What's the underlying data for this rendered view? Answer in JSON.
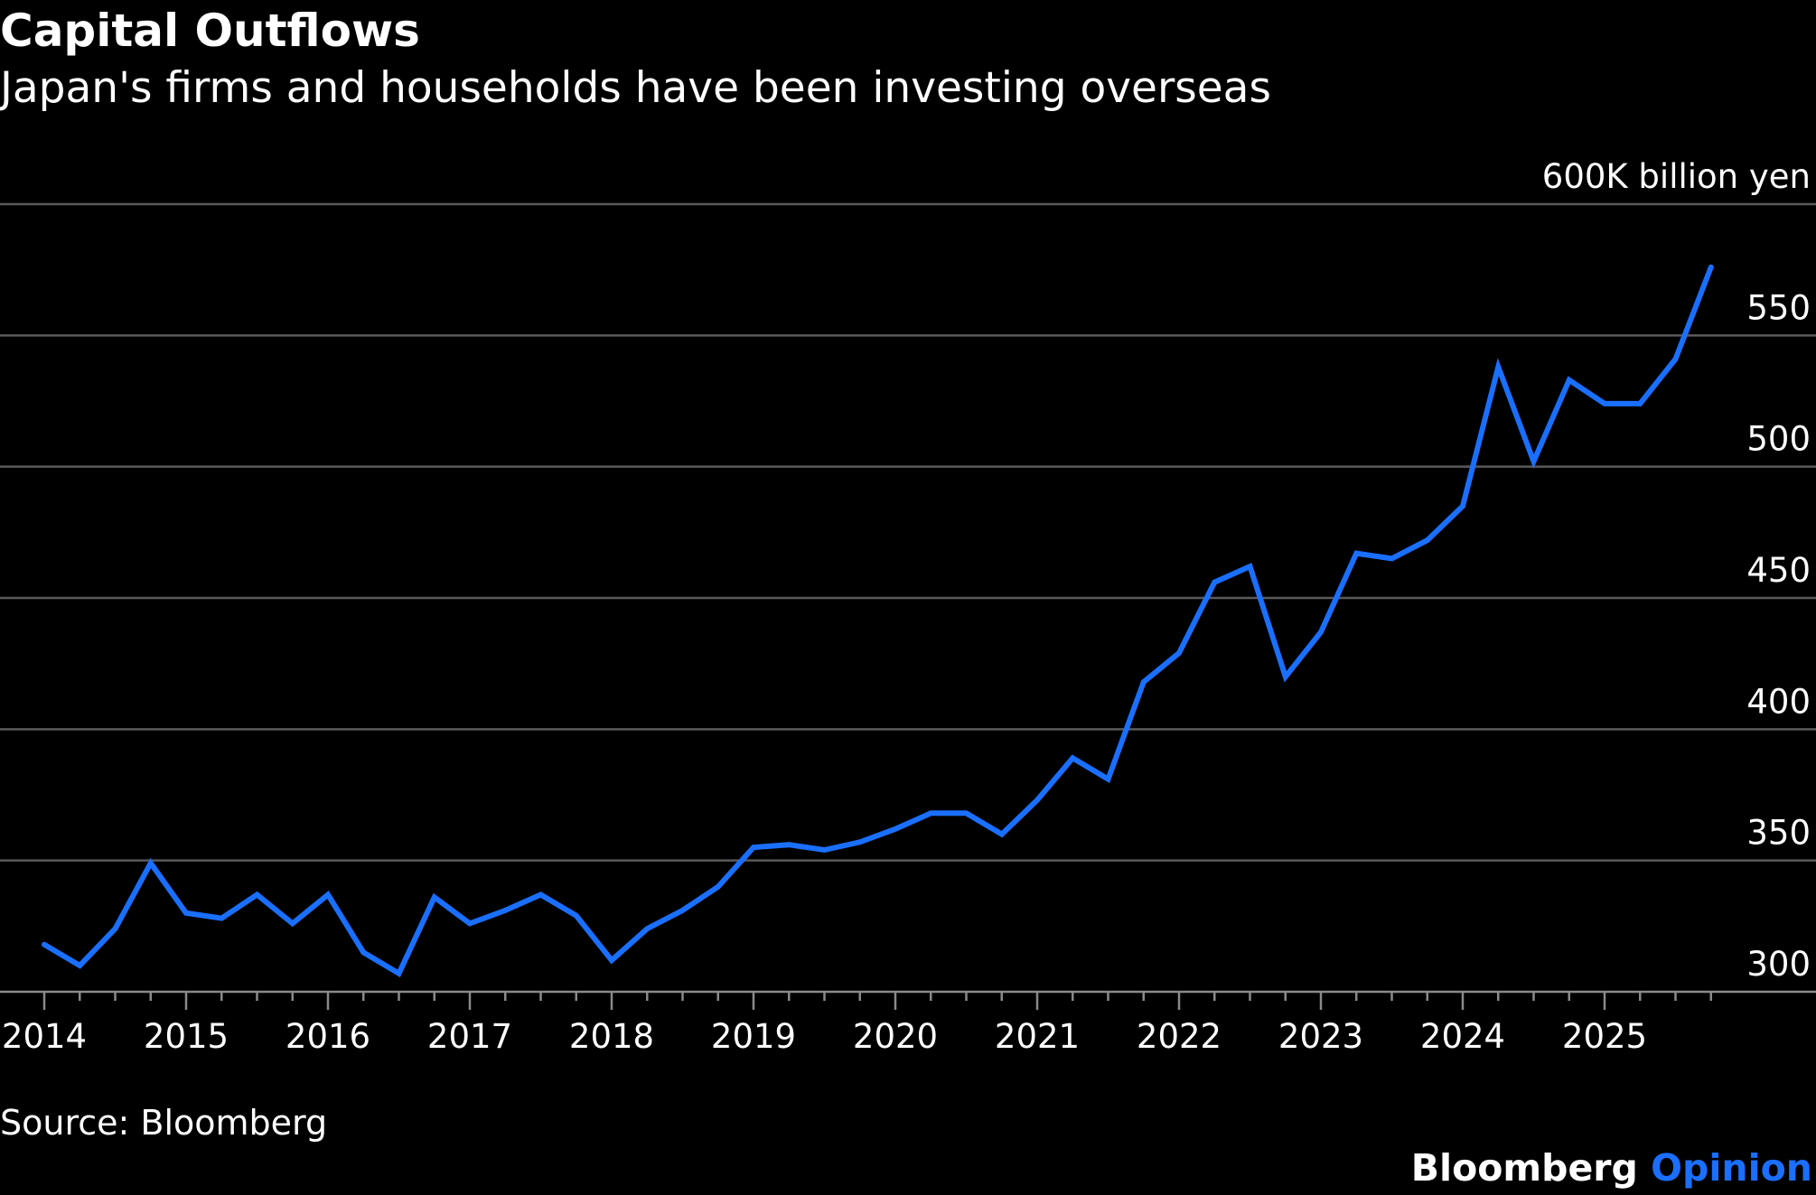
{
  "header": {
    "title": "Capital Outflows",
    "subtitle": "Japan's firms and households have been investing overseas"
  },
  "footer": {
    "source": "Source: Bloomberg",
    "brand_part1": "Bloomberg",
    "brand_part2": "Opinion"
  },
  "colors": {
    "background": "#000000",
    "line": "#1a6fff",
    "grid": "#5a5a5a",
    "text": "#ffffff",
    "brand_accent": "#1a6fff"
  },
  "chart_data": {
    "type": "line",
    "title": "Capital Outflows",
    "subtitle": "Japan's firms and households have been investing overseas",
    "unit_label": "600K billion yen",
    "xlabel": "",
    "ylabel": "",
    "ylim": [
      300,
      600
    ],
    "y_ticks": [
      {
        "value": 600,
        "label": "600K billion yen"
      },
      {
        "value": 550,
        "label": "550"
      },
      {
        "value": 500,
        "label": "500"
      },
      {
        "value": 450,
        "label": "450"
      },
      {
        "value": 400,
        "label": "400"
      },
      {
        "value": 350,
        "label": "350"
      },
      {
        "value": 300,
        "label": "300"
      }
    ],
    "x_range": [
      2014,
      2026
    ],
    "x_ticks": [
      {
        "value": 2014,
        "label": "2014"
      },
      {
        "value": 2015,
        "label": "2015"
      },
      {
        "value": 2016,
        "label": "2016"
      },
      {
        "value": 2017,
        "label": "2017"
      },
      {
        "value": 2018,
        "label": "2018"
      },
      {
        "value": 2019,
        "label": "2019"
      },
      {
        "value": 2020,
        "label": "2020"
      },
      {
        "value": 2021,
        "label": "2021"
      },
      {
        "value": 2022,
        "label": "2022"
      },
      {
        "value": 2023,
        "label": "2023"
      },
      {
        "value": 2024,
        "label": "2024"
      },
      {
        "value": 2025,
        "label": "2025"
      }
    ],
    "grid": true,
    "legend": "none",
    "series": [
      {
        "x": [
          "2014-Q1",
          "2014-Q2",
          "2014-Q3",
          "2014-Q4",
          "2015-Q1",
          "2015-Q2",
          "2015-Q3",
          "2015-Q4",
          "2016-Q1",
          "2016-Q2",
          "2016-Q3",
          "2016-Q4",
          "2017-Q1",
          "2017-Q2",
          "2017-Q3",
          "2017-Q4",
          "2018-Q1",
          "2018-Q2",
          "2018-Q3",
          "2018-Q4",
          "2019-Q1",
          "2019-Q2",
          "2019-Q3",
          "2019-Q4",
          "2020-Q1",
          "2020-Q2",
          "2020-Q3",
          "2020-Q4",
          "2021-Q1",
          "2021-Q2",
          "2021-Q3",
          "2021-Q4",
          "2022-Q1",
          "2022-Q2",
          "2022-Q3",
          "2022-Q4",
          "2023-Q1",
          "2023-Q2",
          "2023-Q3",
          "2023-Q4",
          "2024-Q1",
          "2024-Q2",
          "2024-Q3",
          "2024-Q4",
          "2025-Q1",
          "2025-Q2",
          "2025-Q3",
          "2025-Q4"
        ],
        "values": [
          318,
          310,
          324,
          349,
          330,
          328,
          337,
          326,
          337,
          315,
          307,
          336,
          326,
          331,
          337,
          329,
          312,
          324,
          331,
          340,
          355,
          356,
          354,
          357,
          362,
          368,
          368,
          360,
          373,
          389,
          381,
          418,
          429,
          456,
          462,
          420,
          437,
          467,
          465,
          472,
          485,
          538,
          502,
          533,
          524,
          524,
          541,
          576
        ]
      }
    ]
  }
}
